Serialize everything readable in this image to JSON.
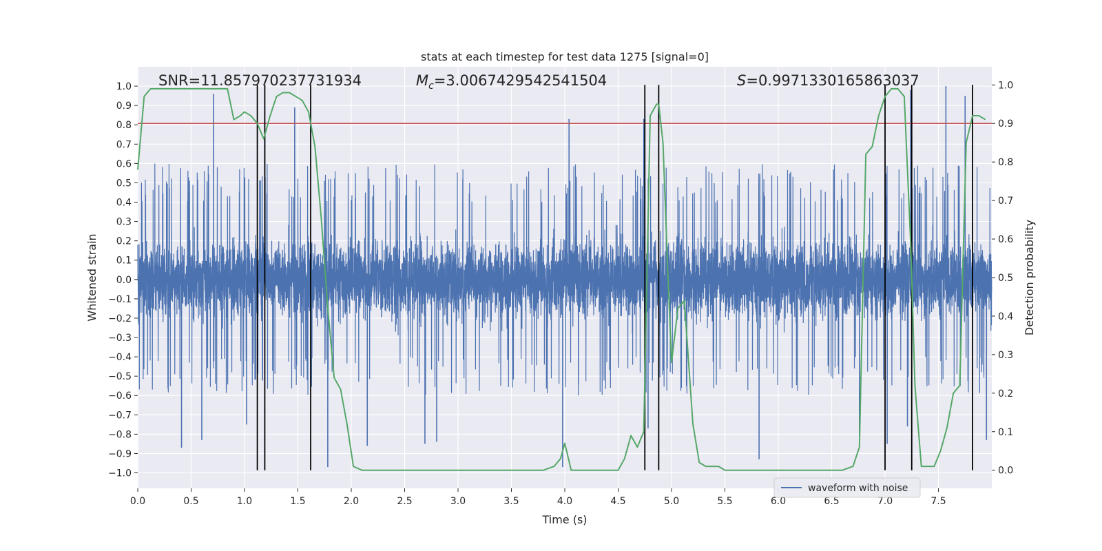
{
  "chart_data": {
    "type": "line",
    "title": "stats at each timestep for test data 1275 [signal=0]",
    "xlabel": "Time (s)",
    "ylabel": "Whitened strain",
    "y2label": "Detection probability",
    "xlim": [
      0.0,
      8.0
    ],
    "ylim": [
      -1.08,
      1.1
    ],
    "y2lim": [
      -0.047,
      1.047
    ],
    "x_ticks": [
      0.0,
      0.5,
      1.0,
      1.5,
      2.0,
      2.5,
      3.0,
      3.5,
      4.0,
      4.5,
      5.0,
      5.5,
      6.0,
      6.5,
      7.0,
      7.5
    ],
    "x_tick_labels": [
      "0.0",
      "0.5",
      "1.0",
      "1.5",
      "2.0",
      "2.5",
      "3.0",
      "3.5",
      "4.0",
      "4.5",
      "5.0",
      "5.5",
      "6.0",
      "6.5",
      "7.0",
      "7.5"
    ],
    "y_ticks": [
      -1.0,
      -0.9,
      -0.8,
      -0.7,
      -0.6,
      -0.5,
      -0.4,
      -0.3,
      -0.2,
      -0.1,
      0.0,
      0.1,
      0.2,
      0.3,
      0.4,
      0.5,
      0.6,
      0.7,
      0.8,
      0.9,
      1.0
    ],
    "y_tick_labels": [
      "−1.0",
      "−0.9",
      "−0.8",
      "−0.7",
      "−0.6",
      "−0.5",
      "−0.4",
      "−0.3",
      "−0.2",
      "−0.1",
      "0.0",
      "0.1",
      "0.2",
      "0.3",
      "0.4",
      "0.5",
      "0.6",
      "0.7",
      "0.8",
      "0.9",
      "1.0"
    ],
    "y2_ticks": [
      0.0,
      0.1,
      0.2,
      0.3,
      0.4,
      0.5,
      0.6,
      0.7,
      0.8,
      0.9,
      1.0
    ],
    "y2_tick_labels": [
      "0.0",
      "0.1",
      "0.2",
      "0.3",
      "0.4",
      "0.5",
      "0.6",
      "0.7",
      "0.8",
      "0.9",
      "1.0"
    ],
    "annotations": {
      "snr": "SNR=11.857970237731934",
      "mc_symbol": "M",
      "mc_sub": "c",
      "mc_value": "=3.0067429542541504",
      "s_symbol": "S",
      "s_value": "=0.9971330165863037"
    },
    "legend": {
      "label": "waveform with noise",
      "placement": "lower-right"
    },
    "threshold": {
      "value": 0.9,
      "axis": "right",
      "color": "#c44e52"
    },
    "vertical_lines": [
      1.12,
      1.19,
      1.62,
      4.75,
      4.88,
      7.0,
      7.25,
      7.82
    ],
    "waveform": {
      "name": "waveform with noise",
      "color": "#4c72b0",
      "t_start": 0.0,
      "t_end": 8.0,
      "n_samples": 8000,
      "core_amplitude": 0.38,
      "typical_peak": 0.55,
      "notable_peaks": [
        {
          "t": 0.41,
          "v": -0.87
        },
        {
          "t": 0.6,
          "v": -0.83
        },
        {
          "t": 0.71,
          "v": 0.96
        },
        {
          "t": 1.02,
          "v": -0.75
        },
        {
          "t": 1.19,
          "v": 0.75
        },
        {
          "t": 1.47,
          "v": 0.89
        },
        {
          "t": 1.78,
          "v": -0.97
        },
        {
          "t": 2.15,
          "v": -0.86
        },
        {
          "t": 2.69,
          "v": -0.85
        },
        {
          "t": 2.8,
          "v": -0.84
        },
        {
          "t": 3.98,
          "v": -0.97
        },
        {
          "t": 4.04,
          "v": 0.83
        },
        {
          "t": 4.74,
          "v": 0.83
        },
        {
          "t": 4.78,
          "v": -0.77
        },
        {
          "t": 5.82,
          "v": -0.93
        },
        {
          "t": 6.76,
          "v": -0.81
        },
        {
          "t": 7.02,
          "v": -0.85
        },
        {
          "t": 7.21,
          "v": -0.76
        },
        {
          "t": 7.24,
          "v": 0.98
        },
        {
          "t": 7.57,
          "v": 1.0
        },
        {
          "t": 7.75,
          "v": 0.95
        },
        {
          "t": 7.95,
          "v": -0.83
        }
      ]
    },
    "probability": {
      "name": "detection probability",
      "color": "#55a868",
      "x": [
        0.0,
        0.06,
        0.12,
        0.18,
        0.24,
        0.3,
        0.36,
        0.42,
        0.48,
        0.54,
        0.6,
        0.66,
        0.72,
        0.78,
        0.84,
        0.9,
        0.96,
        1.0,
        1.06,
        1.12,
        1.18,
        1.24,
        1.3,
        1.36,
        1.42,
        1.48,
        1.54,
        1.6,
        1.66,
        1.72,
        1.78,
        1.84,
        1.9,
        1.96,
        2.02,
        2.1,
        2.2,
        2.3,
        2.4,
        2.5,
        2.6,
        2.7,
        2.8,
        2.9,
        3.0,
        3.1,
        3.2,
        3.3,
        3.4,
        3.5,
        3.6,
        3.7,
        3.8,
        3.9,
        3.96,
        4.0,
        4.06,
        4.12,
        4.2,
        4.3,
        4.4,
        4.5,
        4.56,
        4.62,
        4.68,
        4.74,
        4.8,
        4.86,
        4.88,
        4.92,
        4.96,
        5.0,
        5.06,
        5.12,
        5.2,
        5.26,
        5.32,
        5.38,
        5.44,
        5.5,
        5.56,
        5.6,
        5.7,
        5.8,
        5.9,
        6.0,
        6.1,
        6.2,
        6.3,
        6.4,
        6.5,
        6.6,
        6.7,
        6.76,
        6.82,
        6.88,
        6.94,
        7.0,
        7.06,
        7.12,
        7.18,
        7.24,
        7.28,
        7.34,
        7.4,
        7.46,
        7.52,
        7.58,
        7.64,
        7.7,
        7.76,
        7.82,
        7.88,
        7.94
      ],
      "values": [
        0.78,
        0.97,
        0.99,
        0.99,
        0.99,
        0.99,
        0.99,
        0.99,
        0.99,
        0.99,
        0.99,
        0.99,
        0.99,
        0.99,
        0.99,
        0.91,
        0.92,
        0.93,
        0.92,
        0.9,
        0.86,
        0.92,
        0.97,
        0.98,
        0.98,
        0.97,
        0.96,
        0.93,
        0.84,
        0.65,
        0.42,
        0.24,
        0.21,
        0.12,
        0.01,
        0.0,
        0.0,
        0.0,
        0.0,
        0.0,
        0.0,
        0.0,
        0.0,
        0.0,
        0.0,
        0.0,
        0.0,
        0.0,
        0.0,
        0.0,
        0.0,
        0.0,
        0.0,
        0.01,
        0.03,
        0.07,
        0.0,
        0.0,
        0.0,
        0.0,
        0.0,
        0.0,
        0.03,
        0.09,
        0.06,
        0.1,
        0.92,
        0.95,
        0.95,
        0.85,
        0.55,
        0.28,
        0.42,
        0.44,
        0.12,
        0.02,
        0.01,
        0.01,
        0.01,
        0.0,
        0.0,
        0.0,
        0.0,
        0.0,
        0.0,
        0.0,
        0.0,
        0.0,
        0.0,
        0.0,
        0.0,
        0.0,
        0.01,
        0.06,
        0.82,
        0.84,
        0.92,
        0.97,
        0.99,
        0.99,
        0.97,
        0.59,
        0.22,
        0.01,
        0.01,
        0.01,
        0.05,
        0.11,
        0.2,
        0.22,
        0.85,
        0.92,
        0.92,
        0.91
      ]
    }
  }
}
